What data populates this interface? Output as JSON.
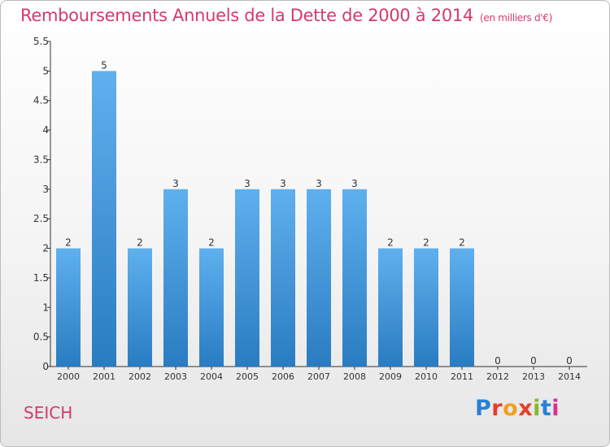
{
  "title": "Remboursements Annuels de la Dette de 2000 à 2014",
  "unit": "(en milliers d'€)",
  "place": "SEICH",
  "logo": {
    "text": "Proxiti",
    "colors": [
      "#2a7fd4",
      "#e33e2b",
      "#f0a020",
      "#e33e2b",
      "#86b830",
      "#2a7fd4",
      "#d6338f"
    ]
  },
  "colors": {
    "title": "#d63a6a",
    "bar_light": "#5fb0ee",
    "bar_dark": "#2a7cc2",
    "axis": "#333333"
  },
  "chart_data": {
    "type": "bar",
    "categories": [
      "2000",
      "2001",
      "2002",
      "2003",
      "2004",
      "2005",
      "2006",
      "2007",
      "2008",
      "2009",
      "2010",
      "2011",
      "2012",
      "2013",
      "2014"
    ],
    "values": [
      2,
      5,
      2,
      3,
      2,
      3,
      3,
      3,
      3,
      2,
      2,
      2,
      0,
      0,
      0
    ],
    "data_labels": [
      "2",
      "5",
      "2",
      "3",
      "2",
      "3",
      "3",
      "3",
      "3",
      "2",
      "2",
      "2",
      "0",
      "0",
      "0"
    ],
    "y_ticks": [
      "0",
      "0.5",
      "1",
      "1.5",
      "2",
      "2.5",
      "3",
      "3.5",
      "4",
      "4.5",
      "5",
      "5.5"
    ],
    "ylim": [
      0,
      5.5
    ],
    "grid": false,
    "legend": "none"
  }
}
